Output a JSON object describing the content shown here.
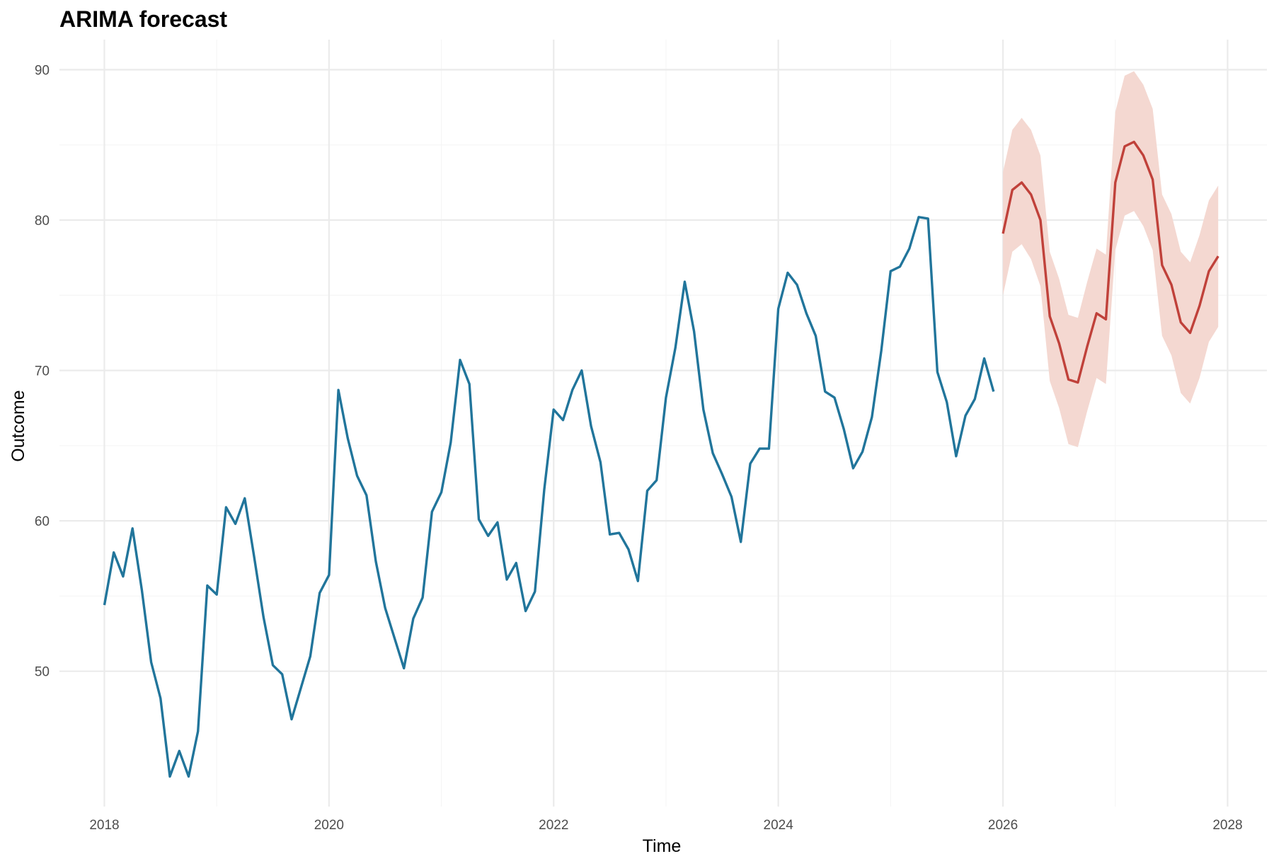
{
  "chart_data": {
    "type": "line",
    "title": "ARIMA forecast",
    "xlabel": "Time",
    "ylabel": "Outcome",
    "xlim": [
      2017.6,
      2028.35
    ],
    "ylim": [
      41.0,
      92.0
    ],
    "x_ticks": [
      2018,
      2020,
      2022,
      2024,
      2026,
      2028
    ],
    "y_ticks": [
      50,
      60,
      70,
      80,
      90
    ],
    "grid": true,
    "legend": "none",
    "series": [
      {
        "role": "observed",
        "color": "#21759b",
        "start": 2018.0,
        "step": 0.08333,
        "values": [
          54.4,
          57.9,
          56.3,
          59.5,
          55.4,
          50.6,
          48.2,
          43.0,
          44.7,
          43.0,
          46.0,
          55.7,
          55.1,
          60.9,
          59.8,
          61.5,
          57.6,
          53.6,
          50.4,
          49.8,
          46.8,
          48.9,
          51.0,
          55.2,
          56.4,
          68.7,
          65.5,
          63.0,
          61.7,
          57.3,
          54.2,
          52.2,
          50.2,
          53.5,
          54.9,
          60.6,
          61.9,
          65.2,
          70.7,
          69.1,
          60.1,
          59.0,
          59.9,
          56.1,
          57.2,
          54.0,
          55.3,
          62.1,
          67.4,
          66.7,
          68.7,
          70.0,
          66.3,
          63.9,
          59.1,
          59.2,
          58.1,
          56.0,
          62.0,
          62.7,
          68.2,
          71.5,
          75.9,
          72.6,
          67.4,
          64.5,
          63.1,
          61.6,
          58.6,
          63.8,
          64.8,
          64.8,
          74.1,
          76.5,
          75.7,
          73.8,
          72.3,
          68.6,
          68.2,
          66.1,
          63.5,
          64.6,
          66.9,
          71.3,
          76.6,
          76.9,
          78.1,
          80.2,
          80.1,
          69.9,
          67.9,
          64.3,
          67.0,
          68.1,
          70.8,
          68.6
        ]
      },
      {
        "role": "forecast",
        "color": "#c0413a",
        "band_color": "#f4d8d1",
        "start": 2026.0,
        "step": 0.08333,
        "values": [
          79.1,
          82.0,
          82.5,
          81.7,
          80.0,
          73.6,
          71.8,
          69.4,
          69.2,
          71.6,
          73.8,
          73.4,
          82.5,
          84.9,
          85.2,
          84.3,
          82.7,
          77.0,
          75.7,
          73.2,
          72.5,
          74.3,
          76.6,
          77.6
        ],
        "lower": [
          75.0,
          77.9,
          78.4,
          77.4,
          75.6,
          69.3,
          67.5,
          65.1,
          64.9,
          67.3,
          69.5,
          69.1,
          78.0,
          80.3,
          80.6,
          79.6,
          78.0,
          72.3,
          71.0,
          68.5,
          67.8,
          69.5,
          71.9,
          72.9
        ],
        "upper": [
          83.2,
          86.0,
          86.8,
          86.0,
          84.3,
          77.9,
          76.1,
          73.7,
          73.5,
          75.9,
          78.1,
          77.7,
          87.2,
          89.6,
          89.9,
          89.0,
          87.4,
          81.7,
          80.4,
          77.9,
          77.2,
          79.0,
          81.3,
          82.3
        ]
      }
    ]
  }
}
